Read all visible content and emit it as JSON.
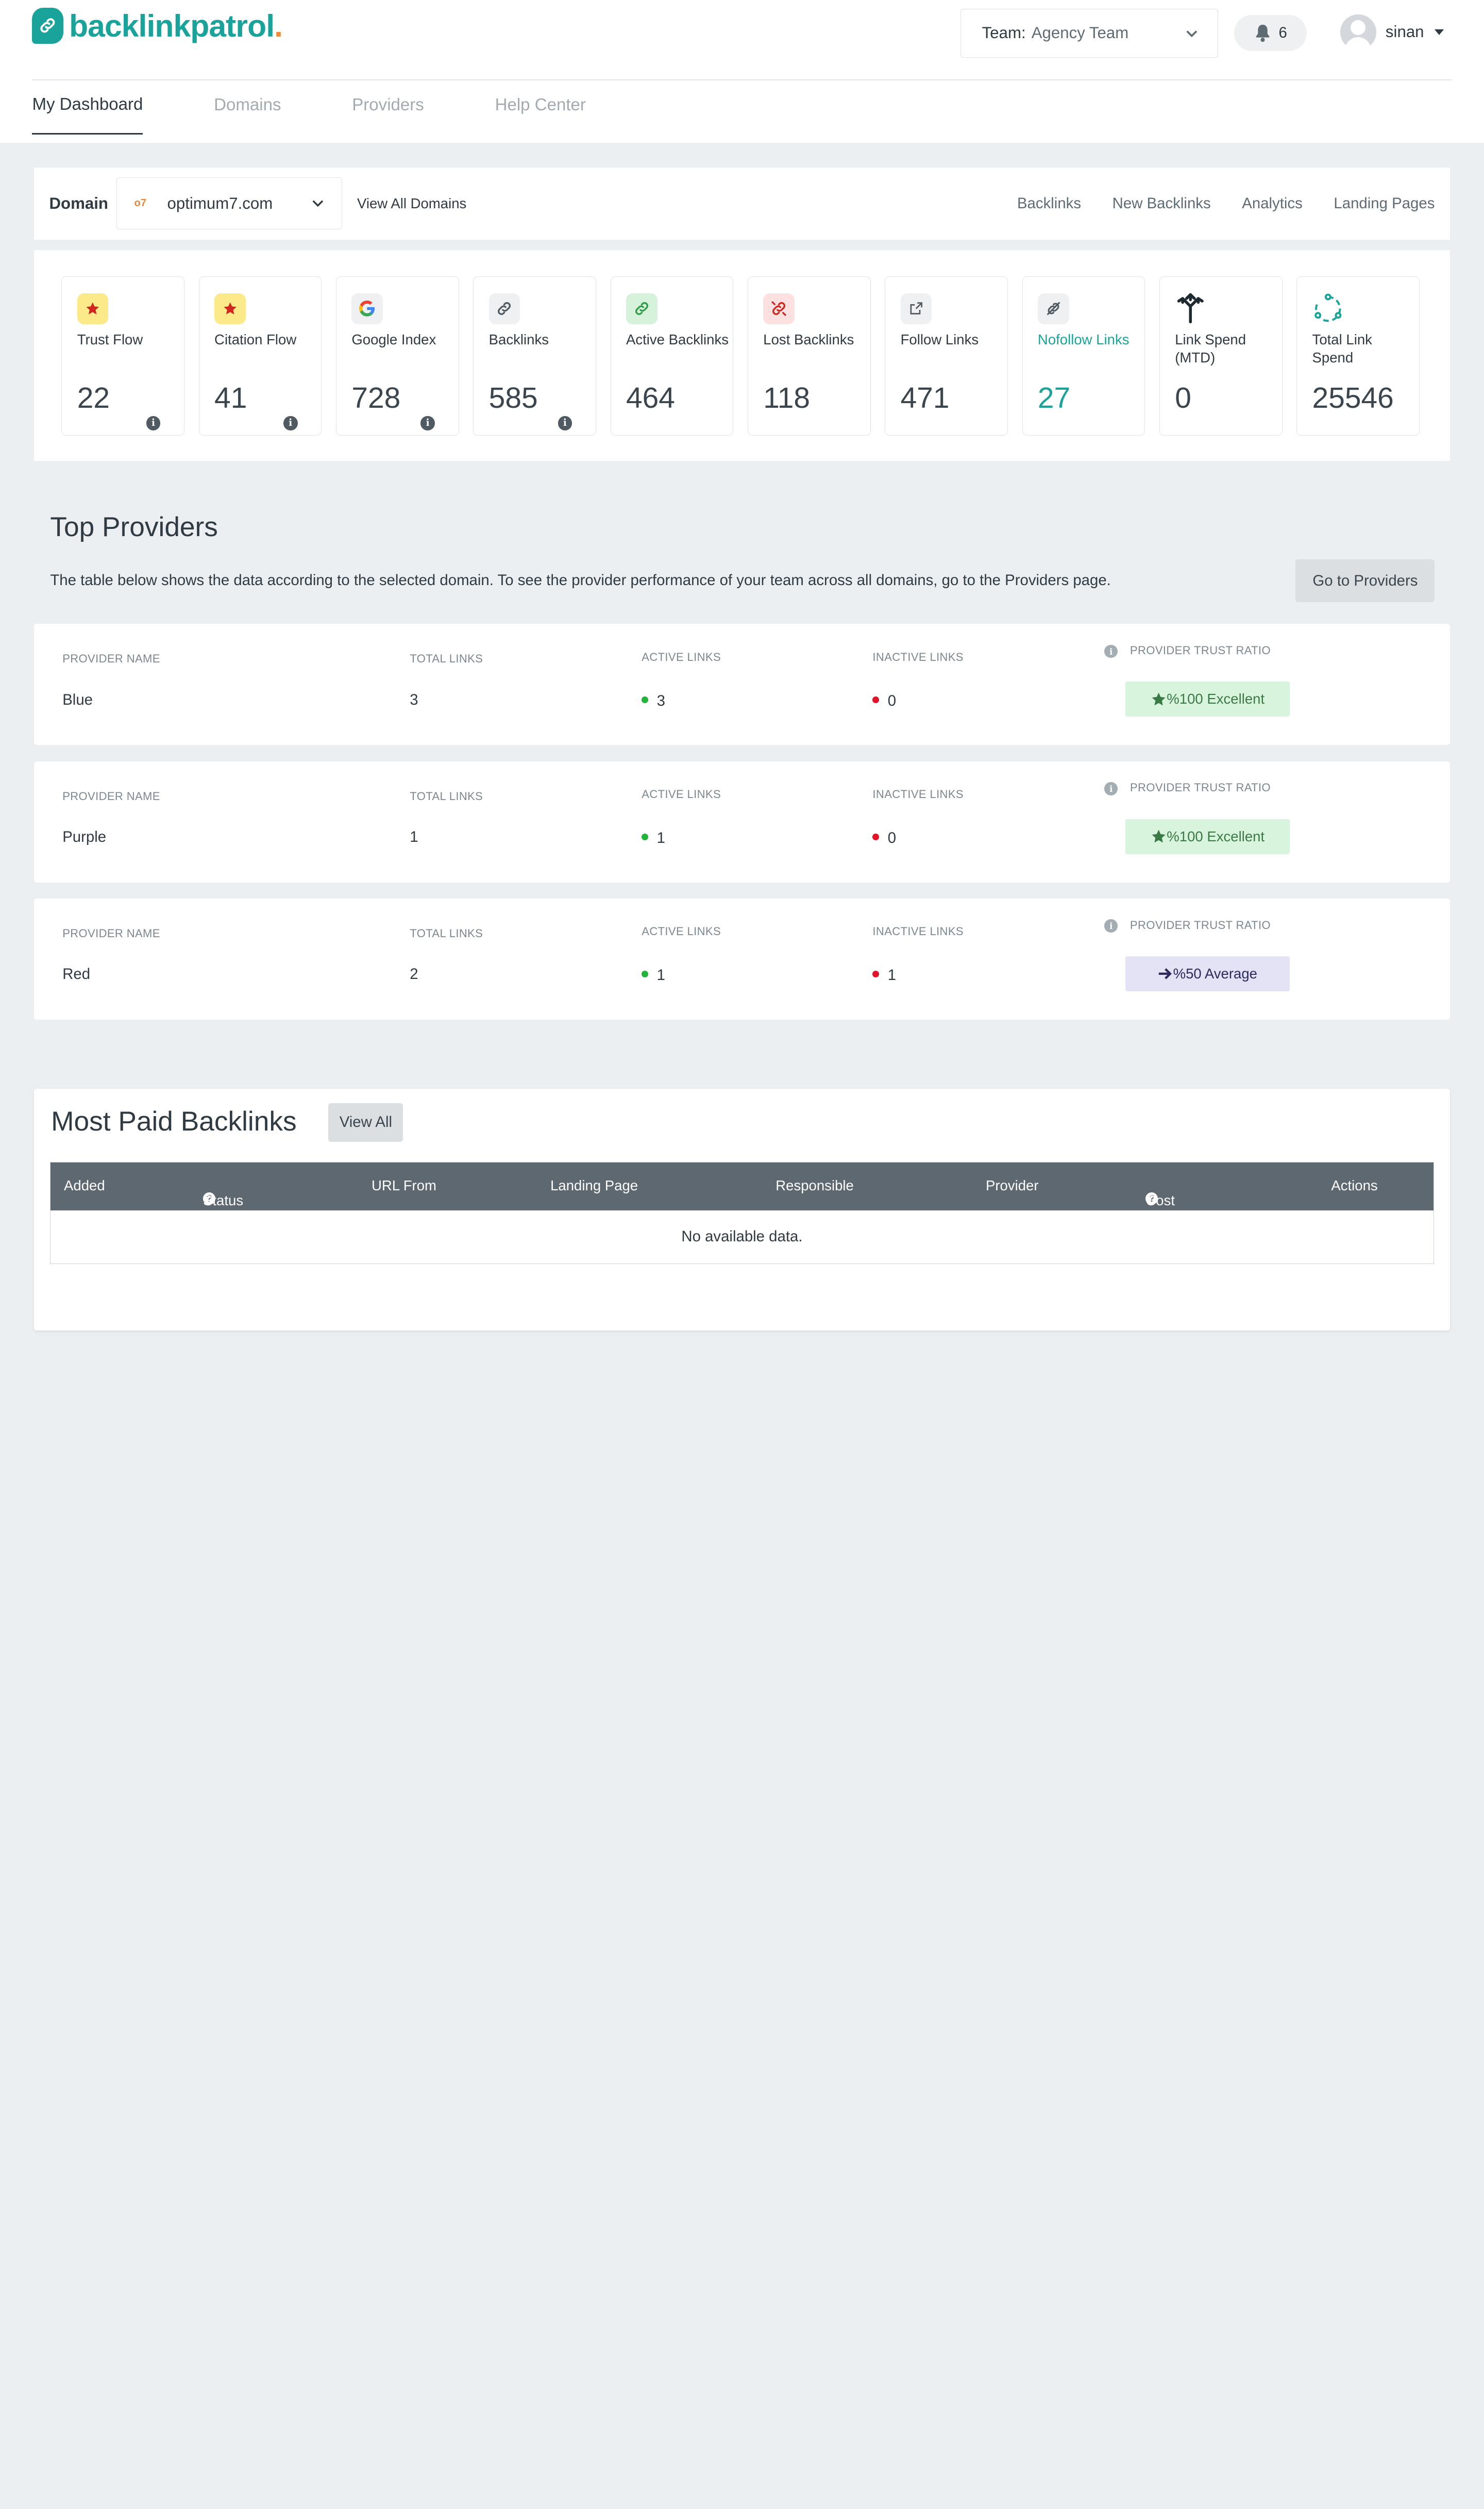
{
  "brand": {
    "name": "backlinkpatrol",
    "dot": ".",
    "color": "#1aa39a",
    "accent": "#f08a3a"
  },
  "header": {
    "team_label": "Team:",
    "team_value": "Agency Team",
    "notifications": "6",
    "user": "sinan"
  },
  "nav": [
    "My Dashboard",
    "Domains",
    "Providers",
    "Help Center"
  ],
  "domain_bar": {
    "label": "Domain",
    "favicon": "o7",
    "selected": "optimum7.com",
    "view_all": "View All Domains",
    "links": [
      "Backlinks",
      "New Backlinks",
      "Analytics",
      "Landing Pages"
    ]
  },
  "metrics": [
    {
      "label": "Trust Flow",
      "value": "22",
      "icon": "star-icon"
    },
    {
      "label": "Citation Flow",
      "value": "41",
      "icon": "star-icon"
    },
    {
      "label": "Google Index",
      "value": "728",
      "icon": "google-icon"
    },
    {
      "label": "Backlinks",
      "value": "585",
      "icon": "link-icon"
    },
    {
      "label": "Active Backlinks",
      "value": "464",
      "icon": "link-icon"
    },
    {
      "label": "Lost Backlinks",
      "value": "118",
      "icon": "broken-link-icon"
    },
    {
      "label": "Follow Links",
      "value": "471",
      "icon": "external-link-icon"
    },
    {
      "label": "Nofollow Links",
      "value": "27",
      "icon": "nofollow-link-icon"
    },
    {
      "label": "Link Spend (MTD)",
      "value": "0",
      "icon": "arrows-split-icon"
    },
    {
      "label": "Total Link Spend",
      "value": "25546",
      "icon": "circle-nodes-icon"
    }
  ],
  "top_providers": {
    "title": "Top Providers",
    "description": "The table below shows the data according to the selected domain. To see the provider performance of your team across all domains, go to the Providers page.",
    "button": "Go to Providers",
    "headers": {
      "name": "PROVIDER NAME",
      "total": "TOTAL LINKS",
      "active": "ACTIVE LINKS",
      "inactive": "INACTIVE LINKS",
      "ratio": "PROVIDER TRUST RATIO"
    },
    "rows": [
      {
        "name": "Blue",
        "total": "3",
        "active": "3",
        "inactive": "0",
        "ratio": "%100 Excellent",
        "ratio_type": "excellent"
      },
      {
        "name": "Purple",
        "total": "1",
        "active": "1",
        "inactive": "0",
        "ratio": "%100 Excellent",
        "ratio_type": "excellent"
      },
      {
        "name": "Red",
        "total": "2",
        "active": "1",
        "inactive": "1",
        "ratio": "%50 Average",
        "ratio_type": "average"
      }
    ]
  },
  "most_paid": {
    "title": "Most Paid Backlinks",
    "button": "View All",
    "columns": [
      "Added",
      "Status",
      "URL From",
      "Landing Page",
      "Responsible",
      "Provider",
      "Cost",
      "Actions"
    ],
    "empty": "No available data."
  }
}
